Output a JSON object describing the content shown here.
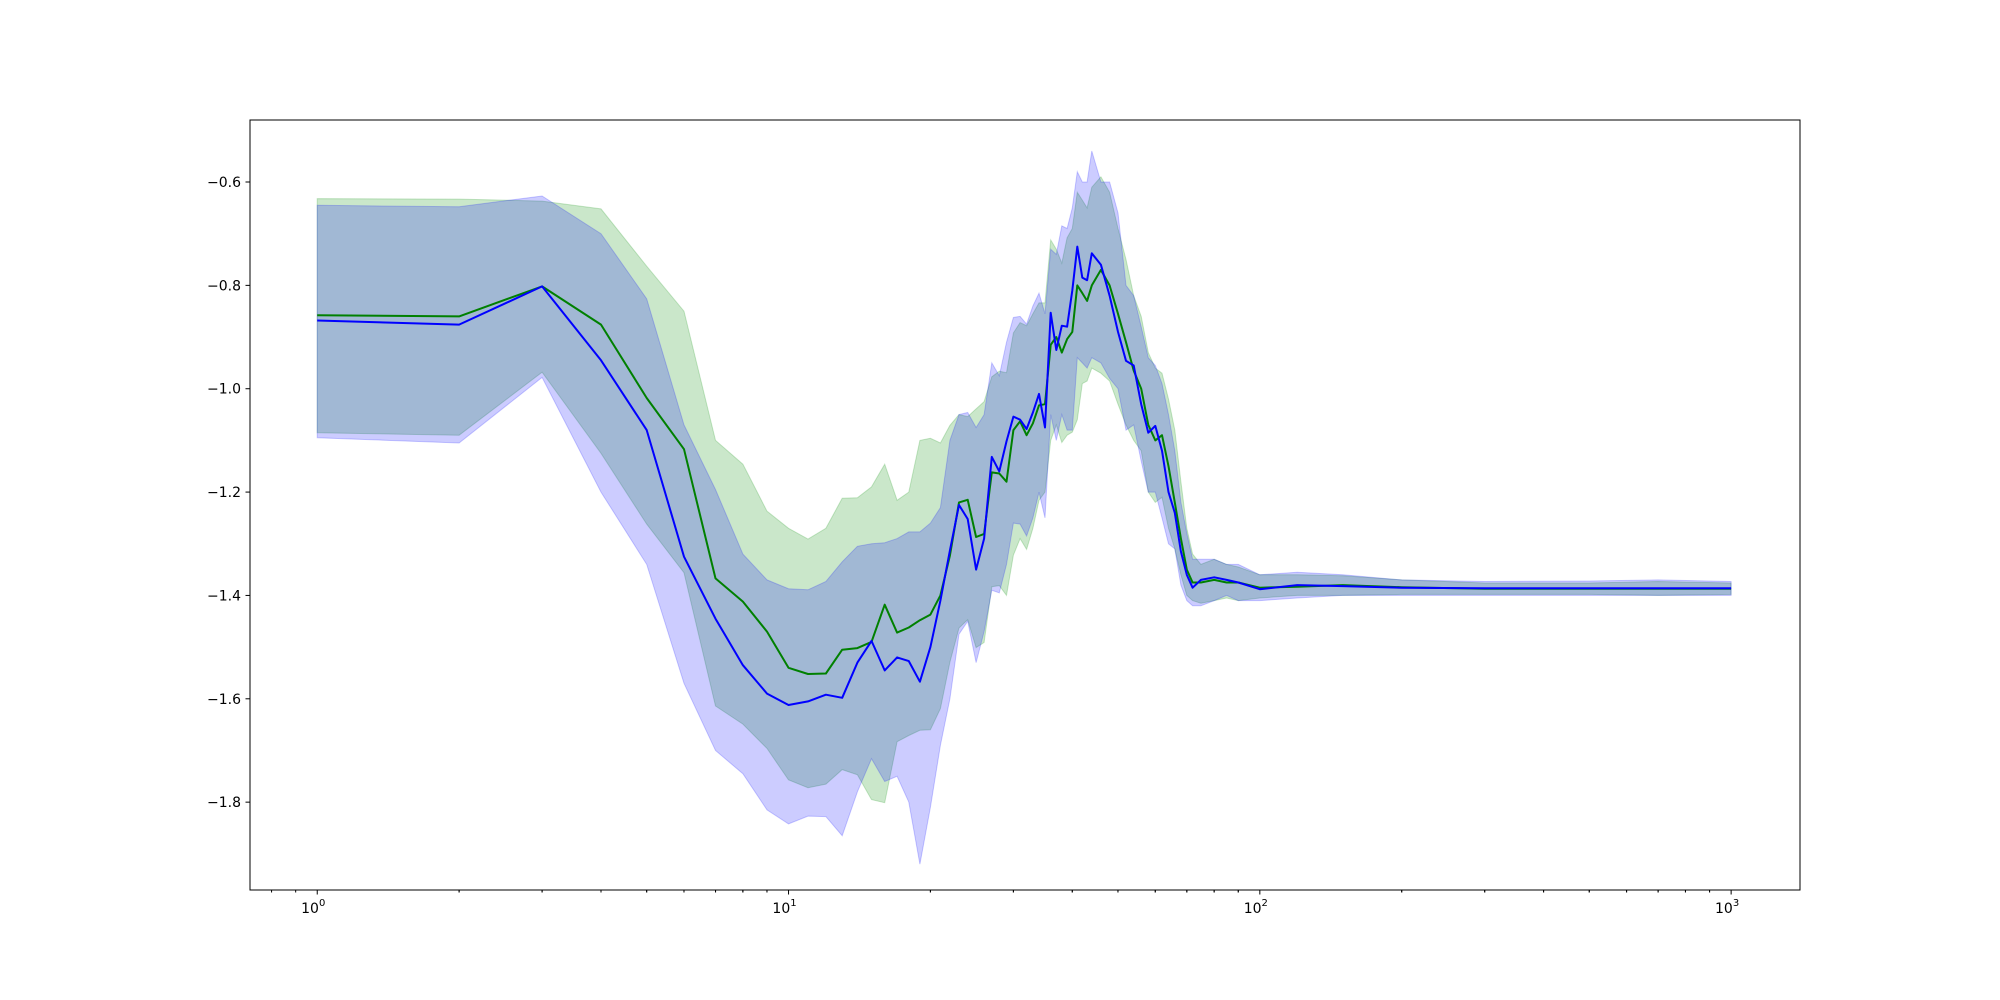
{
  "chart_data": {
    "type": "line",
    "title": "",
    "xlabel": "",
    "ylabel": "",
    "x_scale": "log",
    "xlim": [
      0.72,
      1400
    ],
    "ylim": [
      -1.97,
      -0.48
    ],
    "grid": false,
    "x_ticks": [
      {
        "value": 1,
        "base": "10",
        "exp": "0"
      },
      {
        "value": 10,
        "base": "10",
        "exp": "1"
      },
      {
        "value": 100,
        "base": "10",
        "exp": "2"
      },
      {
        "value": 1000,
        "base": "10",
        "exp": "3"
      }
    ],
    "y_ticks": [
      {
        "value": -0.6,
        "label": "−0.6"
      },
      {
        "value": -0.8,
        "label": "−0.8"
      },
      {
        "value": -1.0,
        "label": "−1.0"
      },
      {
        "value": -1.2,
        "label": "−1.2"
      },
      {
        "value": -1.4,
        "label": "−1.4"
      },
      {
        "value": -1.6,
        "label": "−1.6"
      },
      {
        "value": -1.8,
        "label": "−1.8"
      }
    ],
    "series": [
      {
        "color": "#008000",
        "band_color": "#2ca02c",
        "band_opacity": 0.25,
        "points": [
          [
            1,
            -0.858,
            -1.085,
            -0.632
          ],
          [
            2,
            -0.86,
            -1.09,
            -0.633
          ],
          [
            3,
            -0.802,
            -0.968,
            -0.637
          ],
          [
            4,
            -0.876,
            -1.125,
            -0.652
          ],
          [
            5,
            -1.018,
            -1.262,
            -0.763
          ],
          [
            6,
            -1.117,
            -1.356,
            -0.85
          ],
          [
            7,
            -1.367,
            -1.614,
            -1.1
          ],
          [
            8,
            -1.412,
            -1.649,
            -1.146
          ],
          [
            9,
            -1.47,
            -1.696,
            -1.237
          ],
          [
            10,
            -1.54,
            -1.757,
            -1.27
          ],
          [
            11,
            -1.552,
            -1.772,
            -1.291
          ],
          [
            12,
            -1.551,
            -1.765,
            -1.27
          ],
          [
            13,
            -1.505,
            -1.737,
            -1.212
          ],
          [
            14,
            -1.502,
            -1.747,
            -1.211
          ],
          [
            15,
            -1.49,
            -1.795,
            -1.19
          ],
          [
            16,
            -1.418,
            -1.801,
            -1.146
          ],
          [
            17,
            -1.472,
            -1.683,
            -1.216
          ],
          [
            18,
            -1.462,
            -1.671,
            -1.2
          ],
          [
            19,
            -1.448,
            -1.661,
            -1.1
          ],
          [
            20,
            -1.437,
            -1.66,
            -1.096
          ],
          [
            21,
            -1.4,
            -1.619,
            -1.105
          ],
          [
            22,
            -1.323,
            -1.529,
            -1.071
          ],
          [
            23,
            -1.22,
            -1.463,
            -1.05
          ],
          [
            24,
            -1.215,
            -1.447,
            -1.054
          ],
          [
            25,
            -1.287,
            -1.501,
            -1.039
          ],
          [
            26,
            -1.281,
            -1.491,
            -1.025
          ],
          [
            27,
            -1.162,
            -1.383,
            -0.977
          ],
          [
            28,
            -1.164,
            -1.381,
            -0.966
          ],
          [
            29,
            -1.18,
            -1.4,
            -0.969
          ],
          [
            30,
            -1.08,
            -1.322,
            -0.892
          ],
          [
            31,
            -1.063,
            -1.29,
            -0.872
          ],
          [
            32,
            -1.09,
            -1.311,
            -0.878
          ],
          [
            33,
            -1.067,
            -1.27,
            -0.855
          ],
          [
            34,
            -1.032,
            -1.216,
            -0.834
          ],
          [
            35,
            -1.03,
            -1.2,
            -0.834
          ],
          [
            36,
            -0.915,
            -1.1,
            -0.712
          ],
          [
            37,
            -0.9,
            -1.07,
            -0.73
          ],
          [
            38,
            -0.93,
            -1.104,
            -0.757
          ],
          [
            39,
            -0.904,
            -1.09,
            -0.708
          ],
          [
            40,
            -0.89,
            -1.084,
            -0.69
          ],
          [
            41,
            -0.8,
            -1.06,
            -0.62
          ],
          [
            42,
            -0.815,
            -0.99,
            -0.635
          ],
          [
            43,
            -0.83,
            -0.985,
            -0.65
          ],
          [
            44,
            -0.8,
            -0.96,
            -0.61
          ],
          [
            46,
            -0.77,
            -0.97,
            -0.59
          ],
          [
            48,
            -0.8,
            -0.985,
            -0.62
          ],
          [
            50,
            -0.855,
            -1.03,
            -0.69
          ],
          [
            52,
            -0.91,
            -1.07,
            -0.75
          ],
          [
            54,
            -0.965,
            -1.1,
            -0.82
          ],
          [
            56,
            -1.0,
            -1.12,
            -0.86
          ],
          [
            58,
            -1.07,
            -1.2,
            -0.93
          ],
          [
            60,
            -1.1,
            -1.22,
            -0.96
          ],
          [
            62,
            -1.09,
            -1.21,
            -0.97
          ],
          [
            64,
            -1.15,
            -1.27,
            -1.02
          ],
          [
            66,
            -1.22,
            -1.31,
            -1.08
          ],
          [
            68,
            -1.29,
            -1.36,
            -1.18
          ],
          [
            70,
            -1.35,
            -1.4,
            -1.27
          ],
          [
            72,
            -1.375,
            -1.41,
            -1.32
          ],
          [
            75,
            -1.375,
            -1.415,
            -1.34
          ],
          [
            80,
            -1.37,
            -1.41,
            -1.33
          ],
          [
            85,
            -1.375,
            -1.405,
            -1.34
          ],
          [
            90,
            -1.375,
            -1.41,
            -1.345
          ],
          [
            100,
            -1.385,
            -1.405,
            -1.36
          ],
          [
            120,
            -1.383,
            -1.4,
            -1.36
          ],
          [
            150,
            -1.38,
            -1.4,
            -1.362
          ],
          [
            200,
            -1.384,
            -1.398,
            -1.37
          ],
          [
            300,
            -1.387,
            -1.398,
            -1.376
          ],
          [
            500,
            -1.387,
            -1.398,
            -1.376
          ],
          [
            700,
            -1.387,
            -1.4,
            -1.373
          ],
          [
            1000,
            -1.387,
            -1.398,
            -1.376
          ]
        ]
      },
      {
        "color": "#0000ff",
        "band_color": "#0000ff",
        "band_opacity": 0.2,
        "points": [
          [
            1,
            -0.868,
            -1.095,
            -0.645
          ],
          [
            2,
            -0.876,
            -1.105,
            -0.648
          ],
          [
            3,
            -0.802,
            -0.978,
            -0.627
          ],
          [
            4,
            -0.945,
            -1.2,
            -0.7
          ],
          [
            5,
            -1.08,
            -1.34,
            -0.826
          ],
          [
            6,
            -1.325,
            -1.57,
            -1.07
          ],
          [
            7,
            -1.445,
            -1.7,
            -1.195
          ],
          [
            8,
            -1.535,
            -1.745,
            -1.32
          ],
          [
            9,
            -1.59,
            -1.815,
            -1.37
          ],
          [
            10,
            -1.612,
            -1.842,
            -1.387
          ],
          [
            11,
            -1.605,
            -1.827,
            -1.389
          ],
          [
            12,
            -1.592,
            -1.828,
            -1.373
          ],
          [
            13,
            -1.598,
            -1.865,
            -1.335
          ],
          [
            14,
            -1.53,
            -1.78,
            -1.305
          ],
          [
            15,
            -1.488,
            -1.716,
            -1.3
          ],
          [
            16,
            -1.545,
            -1.76,
            -1.298
          ],
          [
            17,
            -1.52,
            -1.75,
            -1.29
          ],
          [
            18,
            -1.527,
            -1.8,
            -1.277
          ],
          [
            19,
            -1.567,
            -1.92,
            -1.277
          ],
          [
            20,
            -1.5,
            -1.81,
            -1.26
          ],
          [
            21,
            -1.41,
            -1.69,
            -1.23
          ],
          [
            22,
            -1.313,
            -1.6,
            -1.1
          ],
          [
            23,
            -1.225,
            -1.475,
            -1.05
          ],
          [
            24,
            -1.252,
            -1.45,
            -1.046
          ],
          [
            25,
            -1.35,
            -1.53,
            -1.075
          ],
          [
            26,
            -1.29,
            -1.47,
            -1.05
          ],
          [
            27,
            -1.132,
            -1.39,
            -0.95
          ],
          [
            28,
            -1.16,
            -1.395,
            -0.975
          ],
          [
            29,
            -1.102,
            -1.34,
            -0.91
          ],
          [
            30,
            -1.054,
            -1.26,
            -0.862
          ],
          [
            31,
            -1.06,
            -1.262,
            -0.86
          ],
          [
            32,
            -1.078,
            -1.285,
            -0.875
          ],
          [
            33,
            -1.046,
            -1.25,
            -0.84
          ],
          [
            34,
            -1.01,
            -1.2,
            -0.815
          ],
          [
            35,
            -1.075,
            -1.25,
            -0.855
          ],
          [
            36,
            -0.853,
            -1.05,
            -0.73
          ],
          [
            37,
            -0.925,
            -1.1,
            -0.74
          ],
          [
            38,
            -0.878,
            -1.05,
            -0.685
          ],
          [
            39,
            -0.88,
            -1.08,
            -0.69
          ],
          [
            40,
            -0.81,
            -1.08,
            -0.65
          ],
          [
            41,
            -0.725,
            -0.94,
            -0.58
          ],
          [
            42,
            -0.785,
            -0.95,
            -0.6
          ],
          [
            43,
            -0.79,
            -0.96,
            -0.6
          ],
          [
            44,
            -0.738,
            -0.94,
            -0.54
          ],
          [
            46,
            -0.76,
            -0.95,
            -0.6
          ],
          [
            48,
            -0.82,
            -0.98,
            -0.6
          ],
          [
            50,
            -0.89,
            -1.0,
            -0.66
          ],
          [
            52,
            -0.946,
            -1.08,
            -0.8
          ],
          [
            54,
            -0.955,
            -1.07,
            -0.82
          ],
          [
            56,
            -1.03,
            -1.14,
            -0.88
          ],
          [
            58,
            -1.085,
            -1.2,
            -0.94
          ],
          [
            60,
            -1.072,
            -1.2,
            -0.955
          ],
          [
            62,
            -1.12,
            -1.25,
            -0.99
          ],
          [
            64,
            -1.2,
            -1.3,
            -1.05
          ],
          [
            66,
            -1.24,
            -1.31,
            -1.12
          ],
          [
            68,
            -1.315,
            -1.38,
            -1.22
          ],
          [
            70,
            -1.36,
            -1.41,
            -1.28
          ],
          [
            72,
            -1.385,
            -1.42,
            -1.33
          ],
          [
            75,
            -1.37,
            -1.42,
            -1.33
          ],
          [
            80,
            -1.365,
            -1.41,
            -1.33
          ],
          [
            85,
            -1.37,
            -1.4,
            -1.34
          ],
          [
            90,
            -1.375,
            -1.41,
            -1.34
          ],
          [
            100,
            -1.388,
            -1.41,
            -1.36
          ],
          [
            120,
            -1.38,
            -1.405,
            -1.355
          ],
          [
            150,
            -1.382,
            -1.4,
            -1.36
          ],
          [
            200,
            -1.385,
            -1.4,
            -1.37
          ],
          [
            300,
            -1.386,
            -1.4,
            -1.373
          ],
          [
            500,
            -1.386,
            -1.4,
            -1.372
          ],
          [
            700,
            -1.386,
            -1.4,
            -1.37
          ],
          [
            1000,
            -1.386,
            -1.4,
            -1.373
          ]
        ]
      }
    ]
  }
}
